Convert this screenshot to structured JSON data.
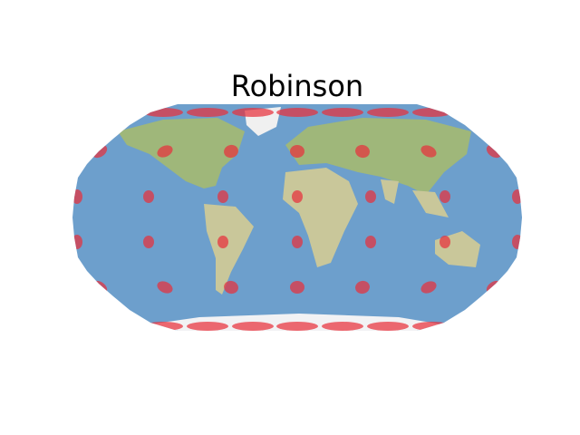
{
  "title": "Robinson"
}
